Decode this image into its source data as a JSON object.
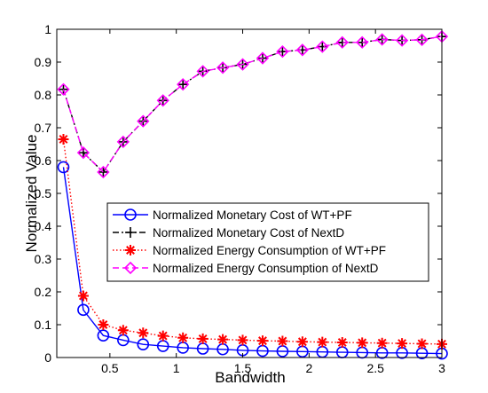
{
  "chart_data": {
    "type": "line",
    "title": "",
    "xlabel": "Bandwidth",
    "ylabel": "Normalized Value",
    "xlim": [
      0.1,
      3
    ],
    "ylim": [
      0,
      1
    ],
    "xticks": [
      0.5,
      1,
      1.5,
      2,
      2.5,
      3
    ],
    "xtick_labels": [
      "0.5",
      "1",
      "1.5",
      "2",
      "2.5",
      "3"
    ],
    "yticks": [
      0,
      0.1,
      0.2,
      0.3,
      0.4,
      0.5,
      0.6,
      0.7,
      0.8,
      0.9,
      1
    ],
    "ytick_labels": [
      "0",
      "0.1",
      "0.2",
      "0.3",
      "0.4",
      "0.5",
      "0.6",
      "0.7",
      "0.8",
      "0.9",
      "1"
    ],
    "grid": false,
    "legend_position": "center-right",
    "x": [
      0.15,
      0.3,
      0.45,
      0.6,
      0.75,
      0.9,
      1.05,
      1.2,
      1.35,
      1.5,
      1.65,
      1.8,
      1.95,
      2.1,
      2.25,
      2.4,
      2.55,
      2.7,
      2.85,
      3.0
    ],
    "series": [
      {
        "name": "Normalized Monetary Cost of WT+PF",
        "color": "#0000ff",
        "line_style": "solid",
        "marker": "circle",
        "values": [
          0.58,
          0.145,
          0.067,
          0.053,
          0.04,
          0.035,
          0.03,
          0.027,
          0.025,
          0.022,
          0.02,
          0.019,
          0.018,
          0.017,
          0.016,
          0.015,
          0.014,
          0.014,
          0.013,
          0.012
        ]
      },
      {
        "name": "Normalized Monetary Cost of NextD",
        "color": "#000000",
        "line_style": "dashdot",
        "marker": "plus",
        "values": [
          0.817,
          0.624,
          0.565,
          0.657,
          0.72,
          0.783,
          0.832,
          0.872,
          0.883,
          0.893,
          0.912,
          0.932,
          0.937,
          0.947,
          0.96,
          0.96,
          0.969,
          0.966,
          0.968,
          0.978
        ]
      },
      {
        "name": "Normalized Energy Consumption of WT+PF",
        "color": "#ff0000",
        "line_style": "dotted",
        "marker": "star",
        "values": [
          0.665,
          0.188,
          0.1,
          0.083,
          0.075,
          0.066,
          0.06,
          0.057,
          0.055,
          0.053,
          0.051,
          0.05,
          0.048,
          0.047,
          0.046,
          0.045,
          0.044,
          0.043,
          0.042,
          0.041
        ]
      },
      {
        "name": "Normalized Energy Consumption of NextD",
        "color": "#ff00ff",
        "line_style": "dashed",
        "marker": "diamond",
        "values": [
          0.817,
          0.624,
          0.565,
          0.657,
          0.72,
          0.783,
          0.832,
          0.872,
          0.883,
          0.893,
          0.912,
          0.932,
          0.937,
          0.947,
          0.96,
          0.96,
          0.969,
          0.966,
          0.968,
          0.978
        ]
      }
    ]
  }
}
